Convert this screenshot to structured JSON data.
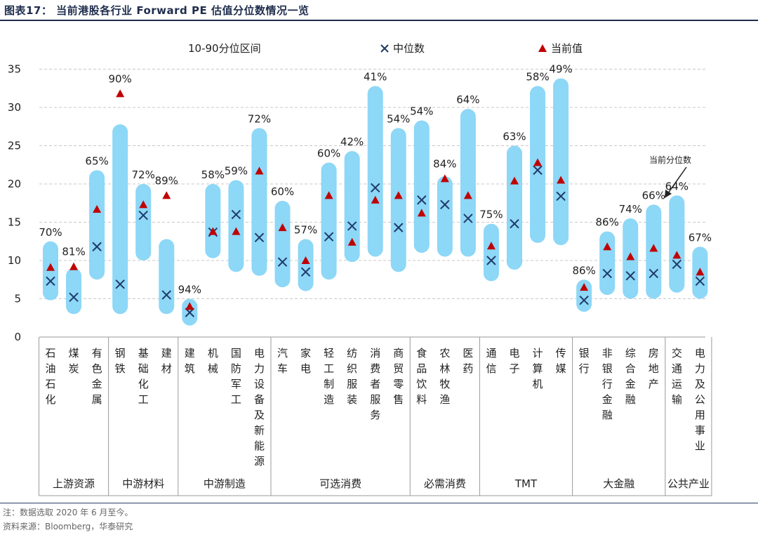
{
  "header": {
    "title": "图表17：  当前港股各行业 Forward PE 估值分位数情况一览"
  },
  "footer": {
    "note": "注：数据选取 2020 年 6 月至今。",
    "source": "资料来源：Bloomberg，华泰研究"
  },
  "colors": {
    "band": "#8dd7f7",
    "median": "#1f3a68",
    "current": "#c00000",
    "grid": "#c8c8c8",
    "title": "#1f2d4d"
  },
  "chart_data": {
    "type": "range-band-with-markers",
    "ylim": [
      0,
      35
    ],
    "yticks": [
      "0",
      "5",
      "10",
      "15",
      "20",
      "25",
      "30",
      "35"
    ],
    "legend": {
      "band": "10-90分位区间",
      "median": "中位数",
      "current": "当前值"
    },
    "annotation": "当前分位数",
    "groups": [
      {
        "name": "上游资源",
        "start": 0,
        "end": 2
      },
      {
        "name": "中游材料",
        "start": 3,
        "end": 5
      },
      {
        "name": "中游制造",
        "start": 6,
        "end": 9
      },
      {
        "name": "可选消费",
        "start": 10,
        "end": 15
      },
      {
        "name": "必需消费",
        "start": 16,
        "end": 18
      },
      {
        "name": "TMT",
        "start": 19,
        "end": 22
      },
      {
        "name": "大金融",
        "start": 23,
        "end": 26
      },
      {
        "name": "公共产业",
        "start": 27,
        "end": 28
      }
    ],
    "industries": [
      {
        "name": "石油石化",
        "low": 4.8,
        "high": 12.5,
        "median": 7.3,
        "current": 9.1,
        "pct": "70%"
      },
      {
        "name": "煤炭",
        "low": 3.0,
        "high": 9.0,
        "median": 5.2,
        "current": 9.2,
        "pct": "81%"
      },
      {
        "name": "有色金属",
        "low": 7.5,
        "high": 21.8,
        "median": 11.8,
        "current": 16.7,
        "pct": "65%"
      },
      {
        "name": "钢铁",
        "low": 3.0,
        "high": 27.8,
        "median": 6.9,
        "current": 31.8,
        "pct": "90%"
      },
      {
        "name": "基础化工",
        "low": 10.0,
        "high": 20.0,
        "median": 15.9,
        "current": 17.3,
        "pct": "72%"
      },
      {
        "name": "建材",
        "low": 3.0,
        "high": 12.8,
        "median": 5.5,
        "current": 18.5,
        "pct": "89%"
      },
      {
        "name": "建筑",
        "low": 1.5,
        "high": 5.0,
        "median": 3.2,
        "current": 4.0,
        "pct": "94%"
      },
      {
        "name": "机械",
        "low": 10.3,
        "high": 20.0,
        "median": 13.7,
        "current": 13.8,
        "pct": "58%"
      },
      {
        "name": "国防军工",
        "low": 8.5,
        "high": 20.5,
        "median": 16.0,
        "current": 13.8,
        "pct": "59%"
      },
      {
        "name": "电力设备及新能源",
        "low": 8.0,
        "high": 27.3,
        "median": 13.0,
        "current": 21.7,
        "pct": "72%"
      },
      {
        "name": "汽车",
        "low": 6.5,
        "high": 17.8,
        "median": 9.8,
        "current": 14.3,
        "pct": "60%"
      },
      {
        "name": "家电",
        "low": 6.0,
        "high": 12.8,
        "median": 8.5,
        "current": 10.0,
        "pct": "57%"
      },
      {
        "name": "轻工制造",
        "low": 7.5,
        "high": 22.8,
        "median": 13.1,
        "current": 18.5,
        "pct": "60%"
      },
      {
        "name": "纺织服装",
        "low": 9.8,
        "high": 24.3,
        "median": 14.5,
        "current": 12.4,
        "pct": "42%"
      },
      {
        "name": "消费者服务",
        "low": 10.5,
        "high": 32.8,
        "median": 19.5,
        "current": 17.9,
        "pct": "41%"
      },
      {
        "name": "商贸零售",
        "low": 8.5,
        "high": 27.3,
        "median": 14.3,
        "current": 18.5,
        "pct": "54%"
      },
      {
        "name": "食品饮料",
        "low": 11.0,
        "high": 28.3,
        "median": 17.9,
        "current": 16.2,
        "pct": "54%"
      },
      {
        "name": "农林牧渔",
        "low": 10.5,
        "high": 21.0,
        "median": 17.3,
        "current": 20.7,
        "pct": "84%"
      },
      {
        "name": "医药",
        "low": 10.5,
        "high": 29.8,
        "median": 15.5,
        "current": 18.5,
        "pct": "64%"
      },
      {
        "name": "通信",
        "low": 7.3,
        "high": 14.8,
        "median": 10.0,
        "current": 11.9,
        "pct": "75%"
      },
      {
        "name": "电子",
        "low": 8.8,
        "high": 25.0,
        "median": 14.8,
        "current": 20.4,
        "pct": "63%"
      },
      {
        "name": "计算机",
        "low": 12.3,
        "high": 32.8,
        "median": 21.8,
        "current": 22.8,
        "pct": "58%"
      },
      {
        "name": "传媒",
        "low": 12.0,
        "high": 33.8,
        "median": 18.4,
        "current": 20.5,
        "pct": "49%"
      },
      {
        "name": "银行",
        "low": 3.3,
        "high": 7.5,
        "median": 4.8,
        "current": 6.5,
        "pct": "86%"
      },
      {
        "name": "非银行金融",
        "low": 5.5,
        "high": 13.8,
        "median": 8.3,
        "current": 11.8,
        "pct": "86%"
      },
      {
        "name": "综合金融",
        "low": 5.0,
        "high": 15.5,
        "median": 8.0,
        "current": 10.5,
        "pct": "74%"
      },
      {
        "name": "房地产",
        "low": 5.0,
        "high": 17.3,
        "median": 8.3,
        "current": 11.6,
        "pct": "66%"
      },
      {
        "name": "交通运输",
        "low": 5.8,
        "high": 18.5,
        "median": 9.5,
        "current": 10.7,
        "pct": "64%"
      },
      {
        "name": "电力及公用事业",
        "low": 5.0,
        "high": 11.8,
        "median": 7.3,
        "current": 8.5,
        "pct": "67%"
      }
    ]
  }
}
